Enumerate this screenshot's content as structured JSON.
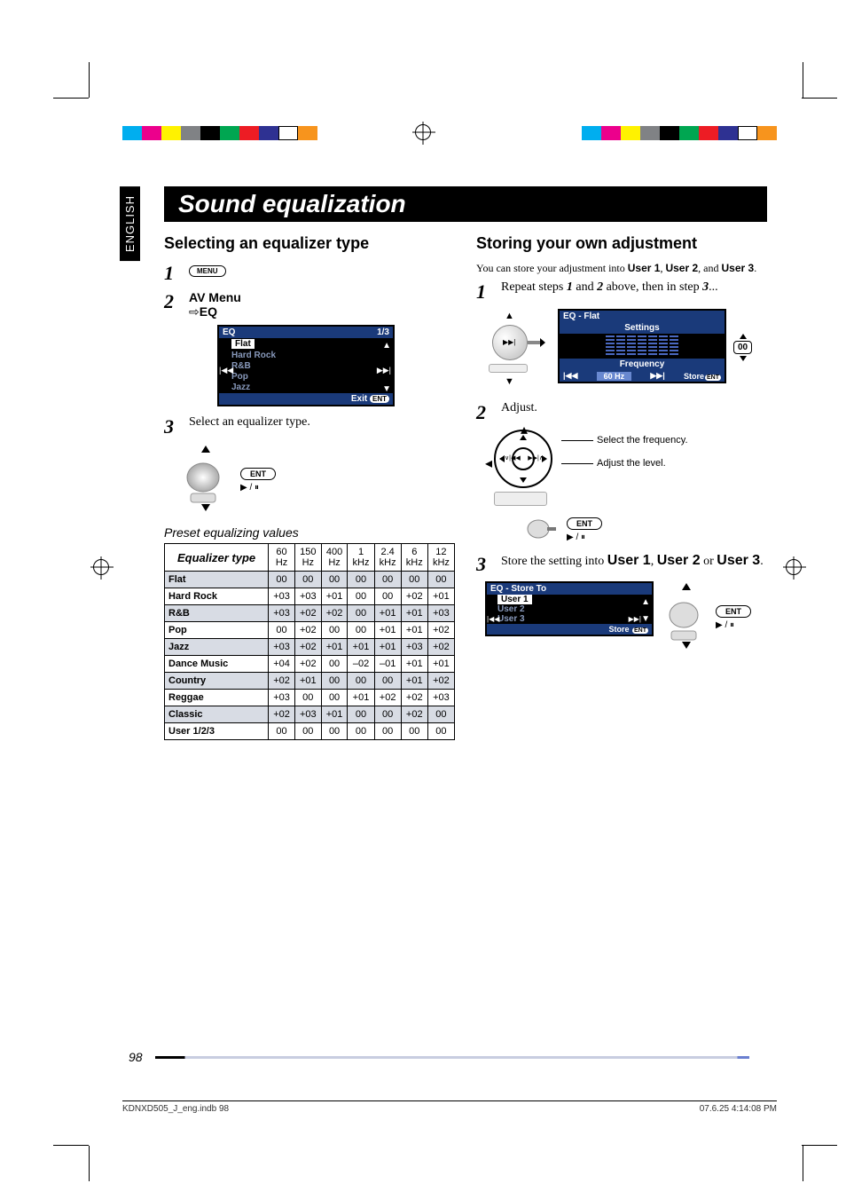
{
  "meta": {
    "language_tab": "ENGLISH",
    "page_number": "98",
    "footer_left": "KDNXD505_J_eng.indb   98",
    "footer_right": "07.6.25   4:14:08 PM",
    "color_bar_colors": [
      "#00aeef",
      "#ec008c",
      "#fff200",
      "#808285",
      "#000000",
      "#00a651",
      "#ed1c24",
      "#2e3192",
      "#ffffff",
      "#f7941d"
    ]
  },
  "title": "Sound equalization",
  "left": {
    "heading": "Selecting an equalizer type",
    "step1_label": "1",
    "step1_button": "MENU",
    "step2_label": "2",
    "step2_line1": "AV Menu",
    "step2_arrow": "⇨",
    "step2_line2": "EQ",
    "lcd": {
      "title": "EQ",
      "page": "1/3",
      "items": [
        "Flat",
        "Hard Rock",
        "R&B",
        "Pop",
        "Jazz"
      ],
      "selected": "Flat",
      "exit": "Exit",
      "ent_badge": "ENT"
    },
    "step3_label": "3",
    "step3_text": "Select an equalizer type.",
    "ent_button": "ENT",
    "preset_heading": "Preset equalizing values",
    "table": {
      "col_header": "Equalizer type",
      "freqs_top": [
        "60",
        "150",
        "400",
        "1",
        "2.4",
        "6",
        "12"
      ],
      "freqs_unit": [
        "Hz",
        "Hz",
        "Hz",
        "kHz",
        "kHz",
        "kHz",
        "kHz"
      ],
      "rows": [
        {
          "name": "Flat",
          "vals": [
            "00",
            "00",
            "00",
            "00",
            "00",
            "00",
            "00"
          ]
        },
        {
          "name": "Hard Rock",
          "vals": [
            "+03",
            "+03",
            "+01",
            "00",
            "00",
            "+02",
            "+01"
          ]
        },
        {
          "name": "R&B",
          "vals": [
            "+03",
            "+02",
            "+02",
            "00",
            "+01",
            "+01",
            "+03"
          ]
        },
        {
          "name": "Pop",
          "vals": [
            "00",
            "+02",
            "00",
            "00",
            "+01",
            "+01",
            "+02"
          ]
        },
        {
          "name": "Jazz",
          "vals": [
            "+03",
            "+02",
            "+01",
            "+01",
            "+01",
            "+03",
            "+02"
          ]
        },
        {
          "name": "Dance Music",
          "vals": [
            "+04",
            "+02",
            "00",
            "–02",
            "–01",
            "+01",
            "+01"
          ]
        },
        {
          "name": "Country",
          "vals": [
            "+02",
            "+01",
            "00",
            "00",
            "00",
            "+01",
            "+02"
          ]
        },
        {
          "name": "Reggae",
          "vals": [
            "+03",
            "00",
            "00",
            "+01",
            "+02",
            "+02",
            "+03"
          ]
        },
        {
          "name": "Classic",
          "vals": [
            "+02",
            "+03",
            "+01",
            "00",
            "00",
            "+02",
            "00"
          ]
        },
        {
          "name": "User 1/2/3",
          "vals": [
            "00",
            "00",
            "00",
            "00",
            "00",
            "00",
            "00"
          ]
        }
      ]
    }
  },
  "right": {
    "heading": "Storing your own adjustment",
    "intro_pre": "You can store your adjustment into ",
    "intro_u1": "User 1",
    "intro_mid1": ", ",
    "intro_u2": "User 2",
    "intro_mid2": ", and ",
    "intro_u3": "User 3",
    "intro_end": ".",
    "step1_label": "1",
    "step1_text_a": "Repeat steps ",
    "step1_em1": "1",
    "step1_text_b": " and ",
    "step1_em2": "2",
    "step1_text_c": " above, then in step ",
    "step1_em3": "3",
    "step1_text_d": "...",
    "eq_lcd": {
      "title": "EQ - Flat",
      "row_settings": "Settings",
      "row_freq": "Frequency",
      "freq_val": "60 Hz",
      "store": "Store",
      "ent": "ENT",
      "val00": "00"
    },
    "step2_label": "2",
    "step2_text": "Adjust.",
    "nav_label_freq": "Select the frequency.",
    "nav_label_level": "Adjust the level.",
    "nav_inner_left": "∨",
    "nav_inner_right": "▶▶|",
    "ent_button": "ENT",
    "step3_label": "3",
    "step3_text_a": "Store the setting into ",
    "step3_u1": "User 1",
    "step3_mid1": ", ",
    "step3_u2": "User 2",
    "step3_or": " or ",
    "step3_u3": "User 3",
    "step3_end": ".",
    "store_lcd": {
      "title": "EQ - Store To",
      "opts": [
        "User 1",
        "User 2",
        "User 3"
      ],
      "selected": "User 1",
      "store": "Store",
      "ent": "ENT"
    }
  }
}
